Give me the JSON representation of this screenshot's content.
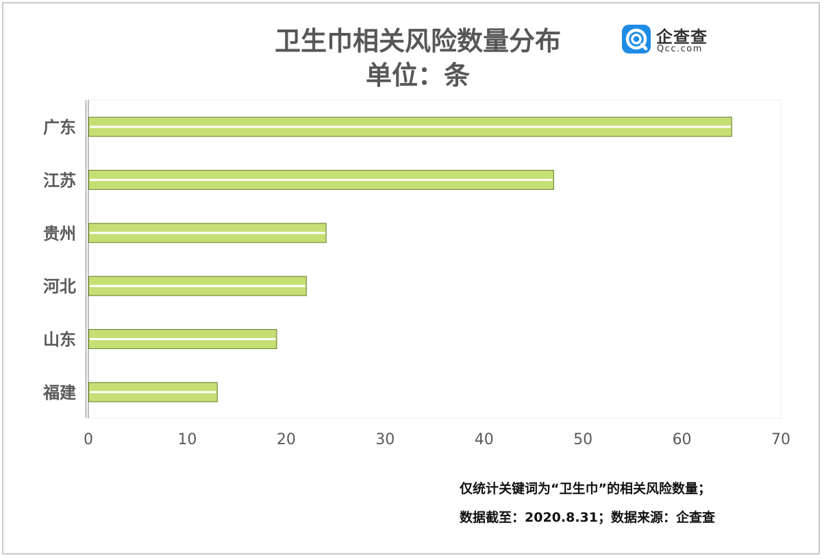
{
  "header": {
    "title": "卫生巾相关风险数量分布",
    "subtitle": "单位：条"
  },
  "logo": {
    "name_cn": "企查查",
    "name_en": "Qcc.com",
    "brand_color": "#1e8ce6"
  },
  "notes": {
    "line1": "仅统计关键词为“卫生巾”的相关风险数量；",
    "line2": "数据截至：2020.8.31；数据来源：企查查"
  },
  "colors": {
    "bar_fill": "#c6df75",
    "bar_stroke": "#5f7a28",
    "bar_stripe": "#ffffff",
    "axis_text": "#595959"
  },
  "chart_data": {
    "type": "bar",
    "orientation": "horizontal",
    "categories": [
      "广东",
      "江苏",
      "贵州",
      "河北",
      "山东",
      "福建"
    ],
    "values": [
      65,
      47,
      24,
      22,
      19,
      13
    ],
    "xlim": [
      0,
      70
    ],
    "xticks": [
      0,
      10,
      20,
      30,
      40,
      50,
      60,
      70
    ],
    "grid": false
  }
}
